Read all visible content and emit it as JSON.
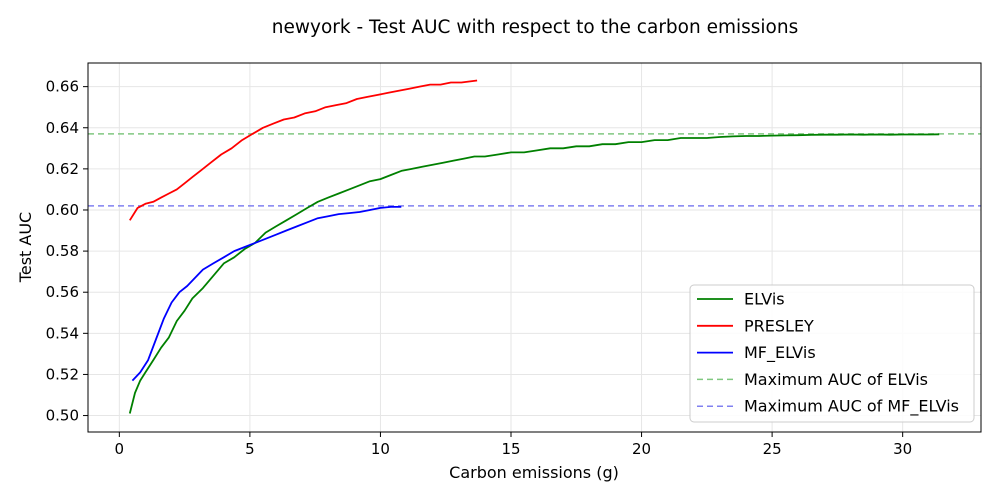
{
  "chart_data": {
    "type": "line",
    "title": "newyork - Test AUC with respect to the carbon emissions",
    "xlabel": "Carbon emissions (g)",
    "ylabel": "Test AUC",
    "xlim": [
      -1.2,
      33
    ],
    "ylim": [
      0.492,
      0.6715
    ],
    "xticks": [
      0,
      5,
      10,
      15,
      20,
      25,
      30
    ],
    "yticks": [
      0.5,
      0.52,
      0.54,
      0.56,
      0.58,
      0.6,
      0.62,
      0.64,
      0.66
    ],
    "xtick_labels": [
      "0",
      "5",
      "10",
      "15",
      "20",
      "25",
      "30"
    ],
    "ytick_labels": [
      "0.50",
      "0.52",
      "0.54",
      "0.56",
      "0.58",
      "0.60",
      "0.62",
      "0.64",
      "0.66"
    ],
    "grid": true,
    "legend_position": "lower-right",
    "series": [
      {
        "name": "ELVis",
        "color": "#008000",
        "style": "solid",
        "x": [
          0.4,
          0.6,
          0.8,
          1.0,
          1.3,
          1.6,
          1.9,
          2.2,
          2.5,
          2.8,
          3.2,
          3.6,
          4.0,
          4.4,
          4.8,
          5.2,
          5.6,
          6.0,
          6.4,
          6.8,
          7.2,
          7.6,
          8.0,
          8.4,
          8.8,
          9.2,
          9.6,
          10.0,
          10.4,
          10.8,
          11.2,
          11.6,
          12.0,
          12.4,
          12.8,
          13.2,
          13.6,
          14.0,
          14.5,
          15.0,
          15.5,
          16.0,
          16.5,
          17.0,
          17.5,
          18.0,
          18.5,
          19.0,
          19.5,
          20.0,
          20.5,
          21.0,
          21.5,
          22.0,
          22.5,
          23.0,
          23.5,
          24.0,
          24.5,
          25.0,
          25.5,
          26.0,
          26.5,
          27.0,
          27.5,
          28.0,
          28.5,
          29.0,
          29.5,
          30.0,
          30.5,
          31.0,
          31.4
        ],
        "y": [
          0.501,
          0.511,
          0.517,
          0.521,
          0.527,
          0.533,
          0.538,
          0.546,
          0.551,
          0.557,
          0.562,
          0.568,
          0.574,
          0.577,
          0.581,
          0.584,
          0.589,
          0.592,
          0.595,
          0.598,
          0.601,
          0.604,
          0.606,
          0.608,
          0.61,
          0.612,
          0.614,
          0.615,
          0.617,
          0.619,
          0.62,
          0.621,
          0.622,
          0.623,
          0.624,
          0.625,
          0.626,
          0.626,
          0.627,
          0.628,
          0.628,
          0.629,
          0.63,
          0.63,
          0.631,
          0.631,
          0.632,
          0.632,
          0.633,
          0.633,
          0.634,
          0.634,
          0.635,
          0.635,
          0.635,
          0.6355,
          0.6358,
          0.636,
          0.636,
          0.6362,
          0.6363,
          0.6364,
          0.6365,
          0.6366,
          0.6366,
          0.6367,
          0.6366,
          0.6367,
          0.6366,
          0.6367,
          0.6367,
          0.6367,
          0.6368
        ]
      },
      {
        "name": "PRESLEY",
        "color": "#ff0000",
        "style": "solid",
        "x": [
          0.4,
          0.7,
          1.0,
          1.3,
          1.6,
          1.9,
          2.2,
          2.5,
          2.8,
          3.1,
          3.5,
          3.9,
          4.3,
          4.7,
          5.1,
          5.5,
          5.9,
          6.3,
          6.7,
          7.1,
          7.5,
          7.9,
          8.3,
          8.7,
          9.1,
          9.5,
          9.9,
          10.3,
          10.7,
          11.1,
          11.5,
          11.9,
          12.3,
          12.7,
          13.1,
          13.4,
          13.7
        ],
        "y": [
          0.595,
          0.601,
          0.603,
          0.604,
          0.606,
          0.608,
          0.61,
          0.613,
          0.616,
          0.619,
          0.623,
          0.627,
          0.63,
          0.634,
          0.637,
          0.64,
          0.642,
          0.644,
          0.645,
          0.647,
          0.648,
          0.65,
          0.651,
          0.652,
          0.654,
          0.655,
          0.656,
          0.657,
          0.658,
          0.659,
          0.66,
          0.661,
          0.661,
          0.662,
          0.662,
          0.6625,
          0.663
        ]
      },
      {
        "name": "MF_ELVis",
        "color": "#0000ff",
        "style": "solid",
        "x": [
          0.5,
          0.8,
          1.1,
          1.4,
          1.7,
          2.0,
          2.3,
          2.6,
          2.9,
          3.2,
          3.6,
          4.0,
          4.4,
          4.8,
          5.2,
          5.6,
          6.0,
          6.4,
          6.8,
          7.2,
          7.6,
          8.0,
          8.4,
          8.8,
          9.2,
          9.6,
          10.0,
          10.4,
          10.8
        ],
        "y": [
          0.517,
          0.521,
          0.527,
          0.537,
          0.547,
          0.555,
          0.56,
          0.563,
          0.567,
          0.571,
          0.574,
          0.577,
          0.58,
          0.582,
          0.584,
          0.586,
          0.588,
          0.59,
          0.592,
          0.594,
          0.596,
          0.597,
          0.598,
          0.5985,
          0.599,
          0.6,
          0.601,
          0.6015,
          0.6015
        ]
      },
      {
        "name": "Maximum AUC of ELVis",
        "color": "#80c880",
        "style": "dashed",
        "y_const": 0.637
      },
      {
        "name": "Maximum AUC of MF_ELVis",
        "color": "#8080f0",
        "style": "dashed",
        "y_const": 0.602
      }
    ]
  }
}
